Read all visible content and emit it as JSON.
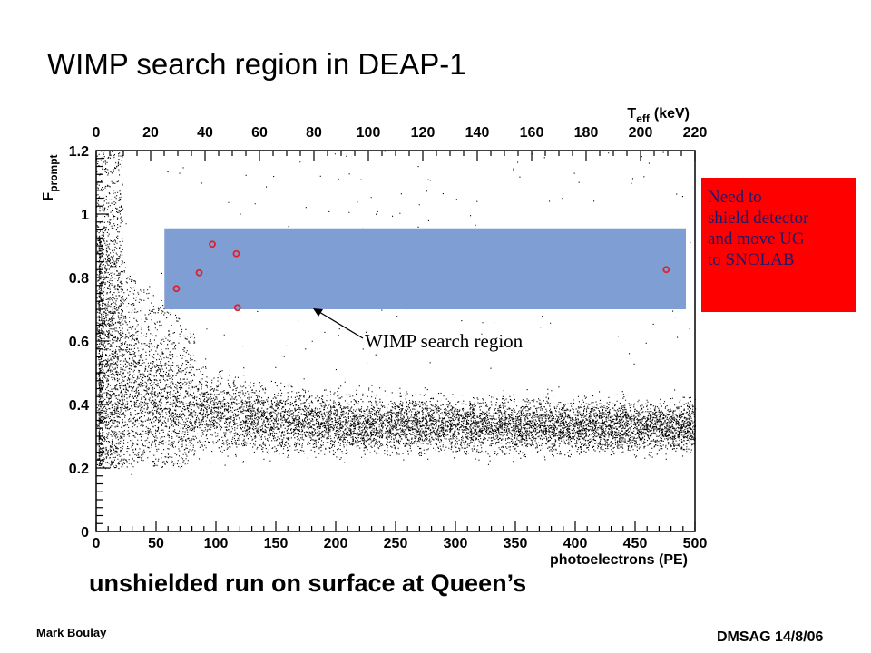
{
  "slide": {
    "title": "WIMP search region in DEAP-1",
    "subtitle": "unshielded run on surface at Queen’s",
    "author": "Mark Boulay",
    "event": "DMSAG 14/8/06"
  },
  "callout": {
    "lines": [
      "Need to",
      "shield detector",
      "and move UG",
      "to SNOLAB"
    ],
    "color": "#ff0000"
  },
  "chart_data": {
    "type": "scatter",
    "xlabel": "photoelectrons (PE)",
    "ylabel": "F",
    "ylabel_sub": "prompt",
    "x2label": "T",
    "x2label_sub": "eff",
    "x2label_unit": "(keV)",
    "xlim": [
      0,
      500
    ],
    "ylim": [
      0,
      1.2
    ],
    "x2lim": [
      0,
      220
    ],
    "xticks": [
      "0",
      "50",
      "100",
      "150",
      "200",
      "250",
      "300",
      "350",
      "400",
      "450",
      "500"
    ],
    "yticks": [
      "0",
      "0.2",
      "0.4",
      "0.6",
      "0.8",
      "1",
      "1.2"
    ],
    "x2ticks": [
      "0",
      "20",
      "40",
      "60",
      "80",
      "100",
      "120",
      "140",
      "160",
      "180",
      "200",
      "220"
    ],
    "search_region": {
      "x": [
        57,
        500
      ],
      "y": [
        0.7,
        0.955
      ],
      "color": "#7f9ed4"
    },
    "search_region_label": "WIMP search region",
    "highlighted_events": [
      {
        "x": 67,
        "y": 0.765
      },
      {
        "x": 86,
        "y": 0.815
      },
      {
        "x": 97,
        "y": 0.905
      },
      {
        "x": 117,
        "y": 0.875
      },
      {
        "x": 118,
        "y": 0.705
      },
      {
        "x": 476,
        "y": 0.825
      }
    ],
    "event_color": "#e0202a",
    "point_color": "#000000",
    "grid": false
  }
}
